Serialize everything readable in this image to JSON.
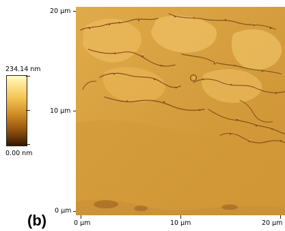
{
  "scale_bar": {
    "max_label": "234.14 nm",
    "min_label": "0.00 nm"
  },
  "axes": {
    "y_ticks": [
      "20 µm",
      "10 µm",
      "0 µm"
    ],
    "x_ticks": [
      "0 µm",
      "10 µm",
      "20 µm"
    ]
  },
  "panel_label": "(b)",
  "colors": {
    "surface_base": "#d49a36",
    "surface_highlight": "#f5cd6b",
    "surface_shadow": "#6d3b08"
  }
}
